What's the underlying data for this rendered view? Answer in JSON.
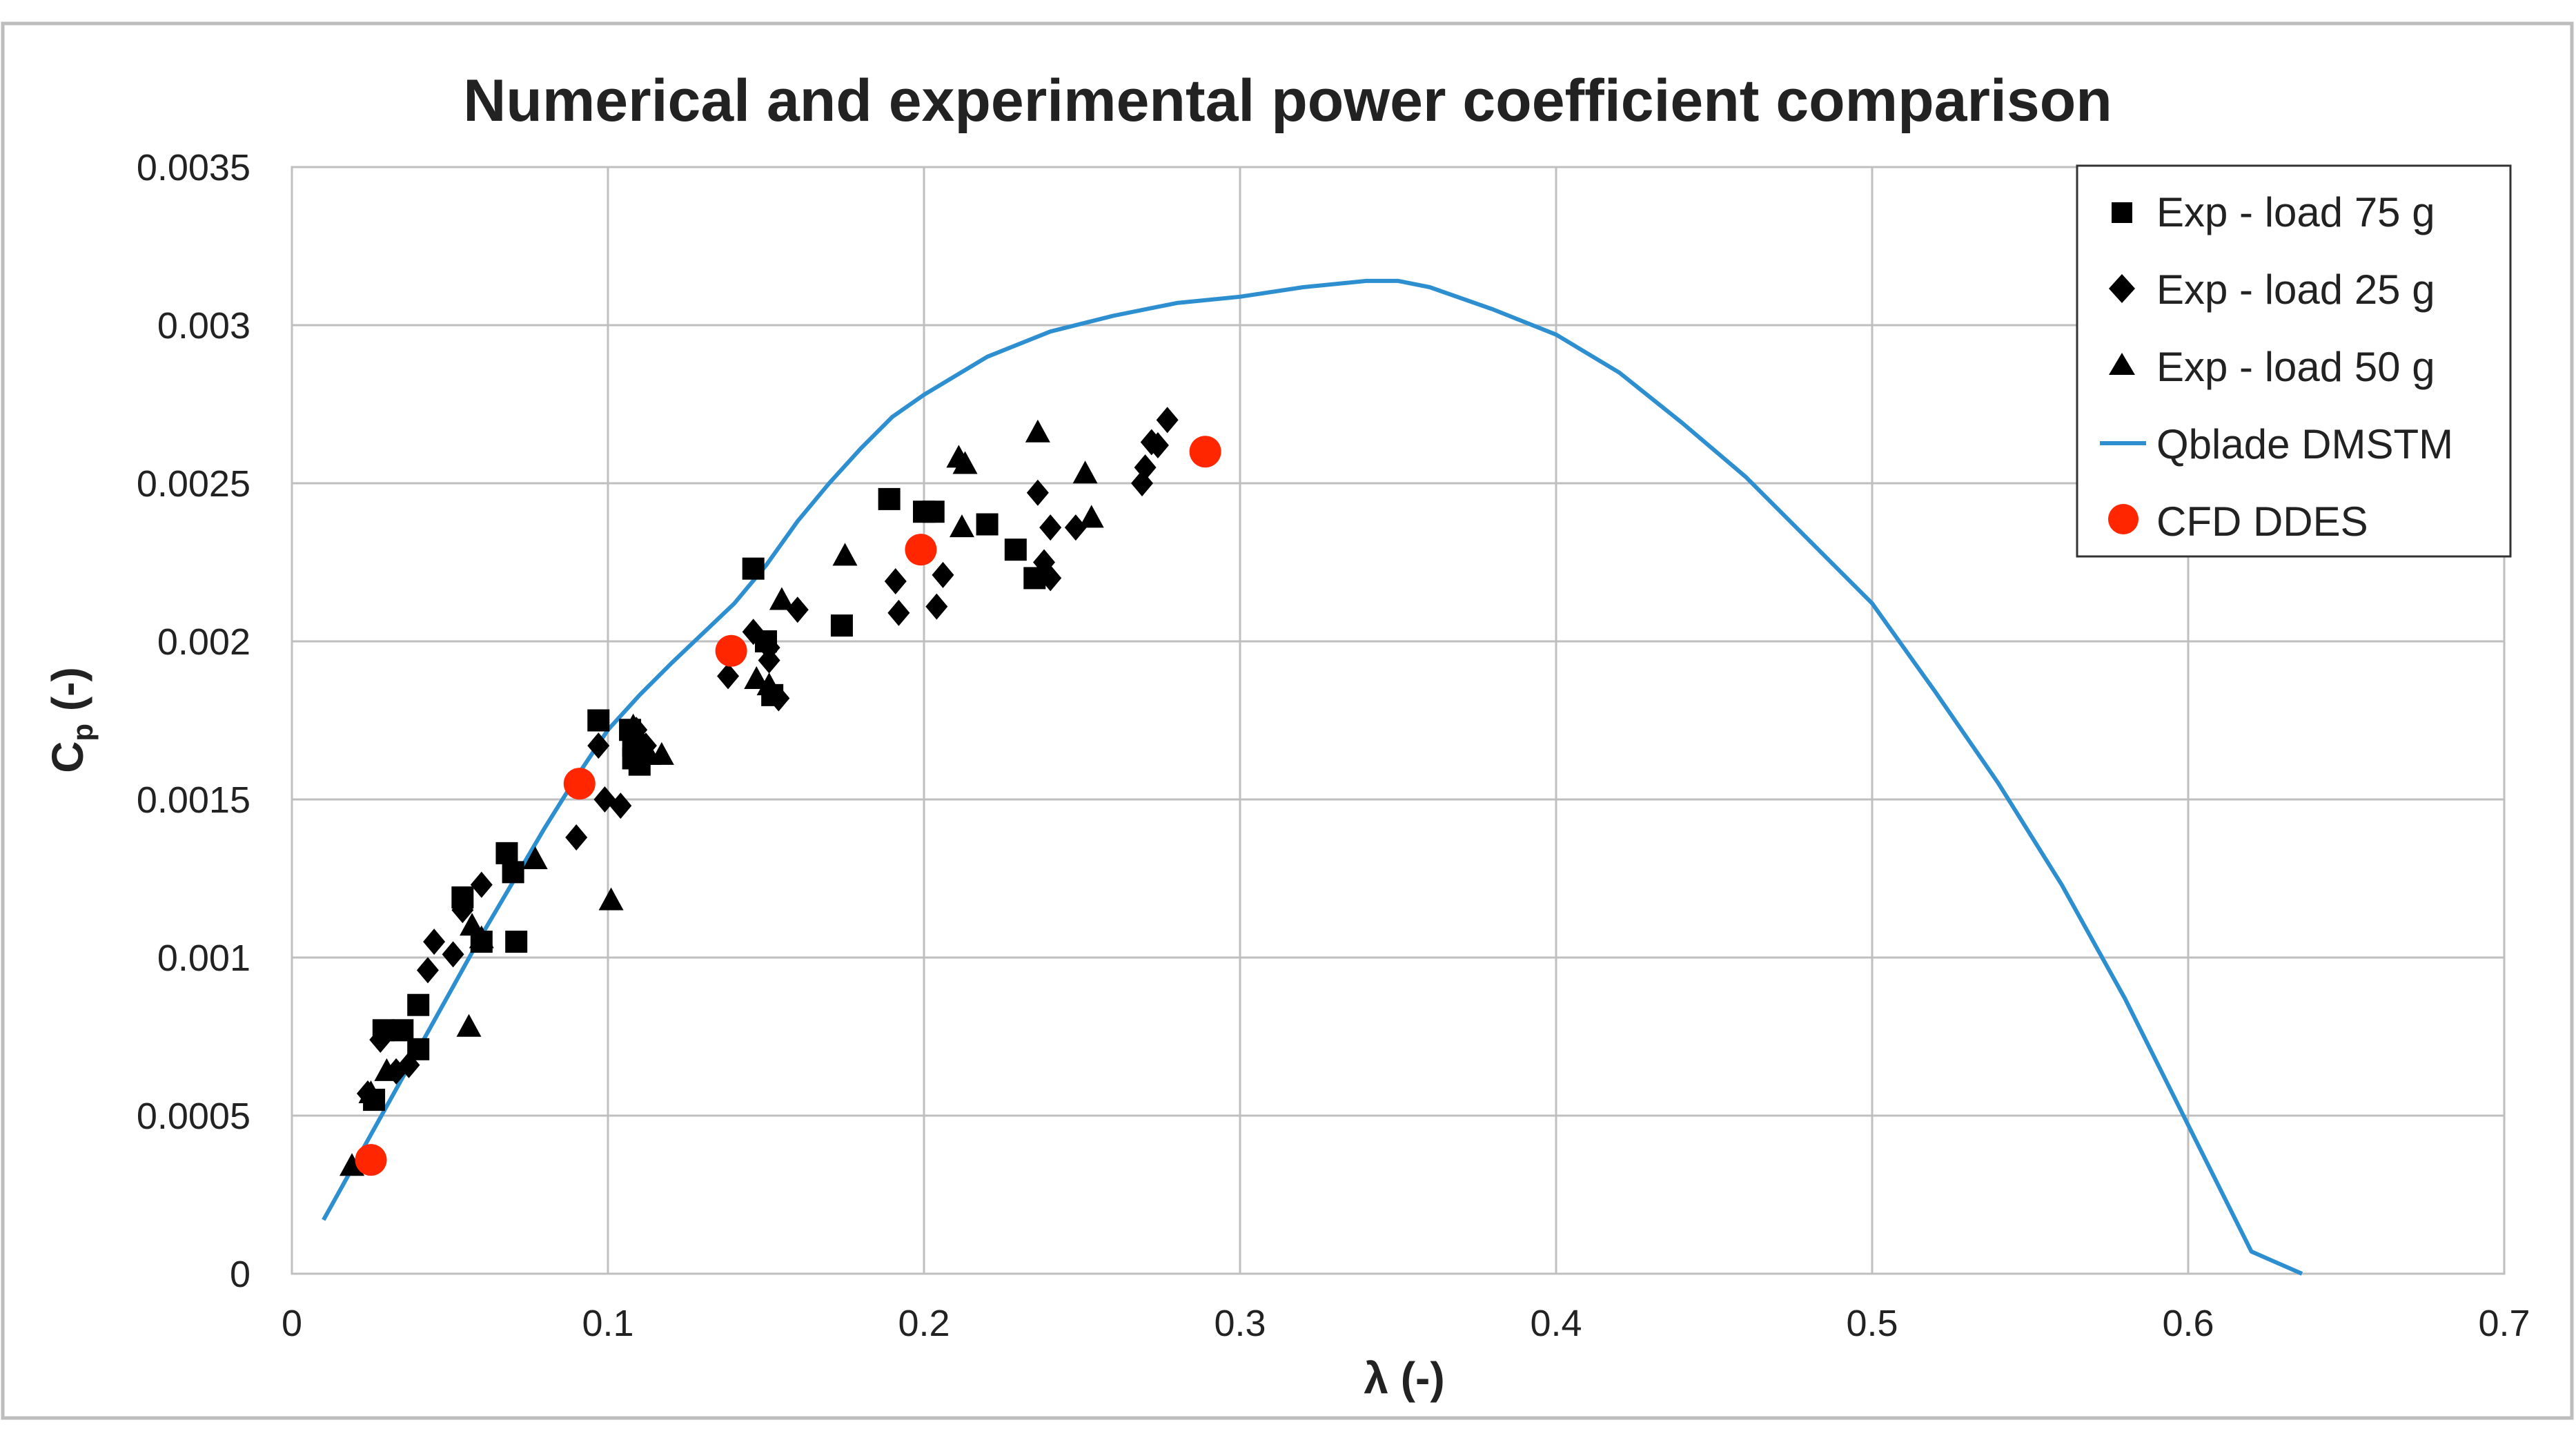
{
  "chart_data": {
    "type": "scatter",
    "title": "Numerical and experimental power coefficient comparison",
    "xlabel": "λ (-)",
    "ylabel_main": "C",
    "ylabel_sub": "p",
    "ylabel_suffix": " (-)",
    "xlim": [
      0,
      0.7
    ],
    "ylim": [
      0,
      0.0035
    ],
    "xticks": [
      0,
      0.1,
      0.2,
      0.3,
      0.4,
      0.5,
      0.6,
      0.7
    ],
    "xtick_labels": [
      "0",
      "0.1",
      "0.2",
      "0.3",
      "0.4",
      "0.5",
      "0.6",
      "0.7"
    ],
    "yticks": [
      0,
      0.0005,
      0.001,
      0.0015,
      0.002,
      0.0025,
      0.003,
      0.0035
    ],
    "ytick_labels": [
      "0",
      "0.0005",
      "0.001",
      "0.0015",
      "0.002",
      "0.0025",
      "0.003",
      "0.0035"
    ],
    "grid": true,
    "legend_position": "top-right",
    "series": [
      {
        "name": "Exp - load 75 g",
        "marker": "square",
        "color": "#000000",
        "points": [
          [
            0.026,
            0.00055
          ],
          [
            0.029,
            0.00077
          ],
          [
            0.035,
            0.00077
          ],
          [
            0.04,
            0.00071
          ],
          [
            0.04,
            0.00085
          ],
          [
            0.054,
            0.00119
          ],
          [
            0.06,
            0.00105
          ],
          [
            0.068,
            0.00133
          ],
          [
            0.07,
            0.00127
          ],
          [
            0.071,
            0.00105
          ],
          [
            0.097,
            0.00175
          ],
          [
            0.107,
            0.00172
          ],
          [
            0.108,
            0.00167
          ],
          [
            0.108,
            0.00163
          ],
          [
            0.11,
            0.00161
          ],
          [
            0.146,
            0.00223
          ],
          [
            0.15,
            0.002
          ],
          [
            0.152,
            0.00183
          ],
          [
            0.174,
            0.00205
          ],
          [
            0.189,
            0.00245
          ],
          [
            0.2,
            0.00241
          ],
          [
            0.203,
            0.00241
          ],
          [
            0.22,
            0.00237
          ],
          [
            0.229,
            0.00229
          ],
          [
            0.235,
            0.0022
          ]
        ]
      },
      {
        "name": "Exp - load 25 g",
        "marker": "diamond",
        "color": "#000000",
        "points": [
          [
            0.024,
            0.00057
          ],
          [
            0.028,
            0.00074
          ],
          [
            0.033,
            0.00064
          ],
          [
            0.037,
            0.00066
          ],
          [
            0.043,
            0.00096
          ],
          [
            0.045,
            0.00105
          ],
          [
            0.051,
            0.00101
          ],
          [
            0.054,
            0.00115
          ],
          [
            0.06,
            0.00123
          ],
          [
            0.09,
            0.00138
          ],
          [
            0.097,
            0.00167
          ],
          [
            0.099,
            0.0015
          ],
          [
            0.104,
            0.00148
          ],
          [
            0.109,
            0.00172
          ],
          [
            0.112,
            0.00167
          ],
          [
            0.138,
            0.00189
          ],
          [
            0.146,
            0.00203
          ],
          [
            0.151,
            0.00198
          ],
          [
            0.151,
            0.00194
          ],
          [
            0.154,
            0.00182
          ],
          [
            0.16,
            0.0021
          ],
          [
            0.191,
            0.00219
          ],
          [
            0.192,
            0.00209
          ],
          [
            0.204,
            0.00211
          ],
          [
            0.206,
            0.00221
          ],
          [
            0.236,
            0.00247
          ],
          [
            0.238,
            0.00225
          ],
          [
            0.24,
            0.0022
          ],
          [
            0.24,
            0.00236
          ],
          [
            0.248,
            0.00236
          ],
          [
            0.269,
            0.0025
          ],
          [
            0.27,
            0.00255
          ],
          [
            0.272,
            0.00263
          ],
          [
            0.274,
            0.00262
          ],
          [
            0.277,
            0.0027
          ]
        ]
      },
      {
        "name": "Exp - load 50 g",
        "marker": "triangle",
        "color": "#000000",
        "points": [
          [
            0.019,
            0.00034
          ],
          [
            0.025,
            0.00057
          ],
          [
            0.03,
            0.00064
          ],
          [
            0.056,
            0.00078
          ],
          [
            0.057,
            0.0011
          ],
          [
            0.06,
            0.00106
          ],
          [
            0.077,
            0.00131
          ],
          [
            0.101,
            0.00118
          ],
          [
            0.108,
            0.00173
          ],
          [
            0.113,
            0.00164
          ],
          [
            0.117,
            0.00164
          ],
          [
            0.147,
            0.00188
          ],
          [
            0.151,
            0.00186
          ],
          [
            0.155,
            0.00213
          ],
          [
            0.175,
            0.00227
          ],
          [
            0.211,
            0.00258
          ],
          [
            0.212,
            0.00236
          ],
          [
            0.213,
            0.00256
          ],
          [
            0.236,
            0.00266
          ],
          [
            0.251,
            0.00253
          ],
          [
            0.253,
            0.00239
          ]
        ]
      },
      {
        "name": "Qblade DMSTM",
        "type": "line",
        "color": "#2e8fd0",
        "points": [
          [
            0.01,
            0.00017
          ],
          [
            0.02,
            0.00035
          ],
          [
            0.03,
            0.00053
          ],
          [
            0.04,
            0.00071
          ],
          [
            0.05,
            0.00089
          ],
          [
            0.06,
            0.00107
          ],
          [
            0.07,
            0.00124
          ],
          [
            0.08,
            0.00141
          ],
          [
            0.09,
            0.00157
          ],
          [
            0.1,
            0.00172
          ],
          [
            0.11,
            0.00183
          ],
          [
            0.12,
            0.00193
          ],
          [
            0.14,
            0.00212
          ],
          [
            0.15,
            0.00224
          ],
          [
            0.16,
            0.00238
          ],
          [
            0.17,
            0.0025
          ],
          [
            0.18,
            0.00261
          ],
          [
            0.19,
            0.00271
          ],
          [
            0.2,
            0.00278
          ],
          [
            0.22,
            0.0029
          ],
          [
            0.24,
            0.00298
          ],
          [
            0.26,
            0.00303
          ],
          [
            0.28,
            0.00307
          ],
          [
            0.3,
            0.00309
          ],
          [
            0.32,
            0.00312
          ],
          [
            0.34,
            0.00314
          ],
          [
            0.35,
            0.00314
          ],
          [
            0.36,
            0.00312
          ],
          [
            0.38,
            0.00305
          ],
          [
            0.4,
            0.00297
          ],
          [
            0.42,
            0.00285
          ],
          [
            0.44,
            0.00269
          ],
          [
            0.46,
            0.00252
          ],
          [
            0.48,
            0.00232
          ],
          [
            0.5,
            0.00212
          ],
          [
            0.52,
            0.00184
          ],
          [
            0.54,
            0.00155
          ],
          [
            0.56,
            0.00123
          ],
          [
            0.58,
            0.00087
          ],
          [
            0.6,
            0.00047
          ],
          [
            0.62,
            7e-05
          ],
          [
            0.636,
            0
          ]
        ]
      },
      {
        "name": "CFD DDES",
        "marker": "circle",
        "color": "#ff2600",
        "points": [
          [
            0.025,
            0.00036
          ],
          [
            0.091,
            0.00155
          ],
          [
            0.139,
            0.00197
          ],
          [
            0.199,
            0.00229
          ],
          [
            0.289,
            0.0026
          ]
        ]
      }
    ]
  }
}
